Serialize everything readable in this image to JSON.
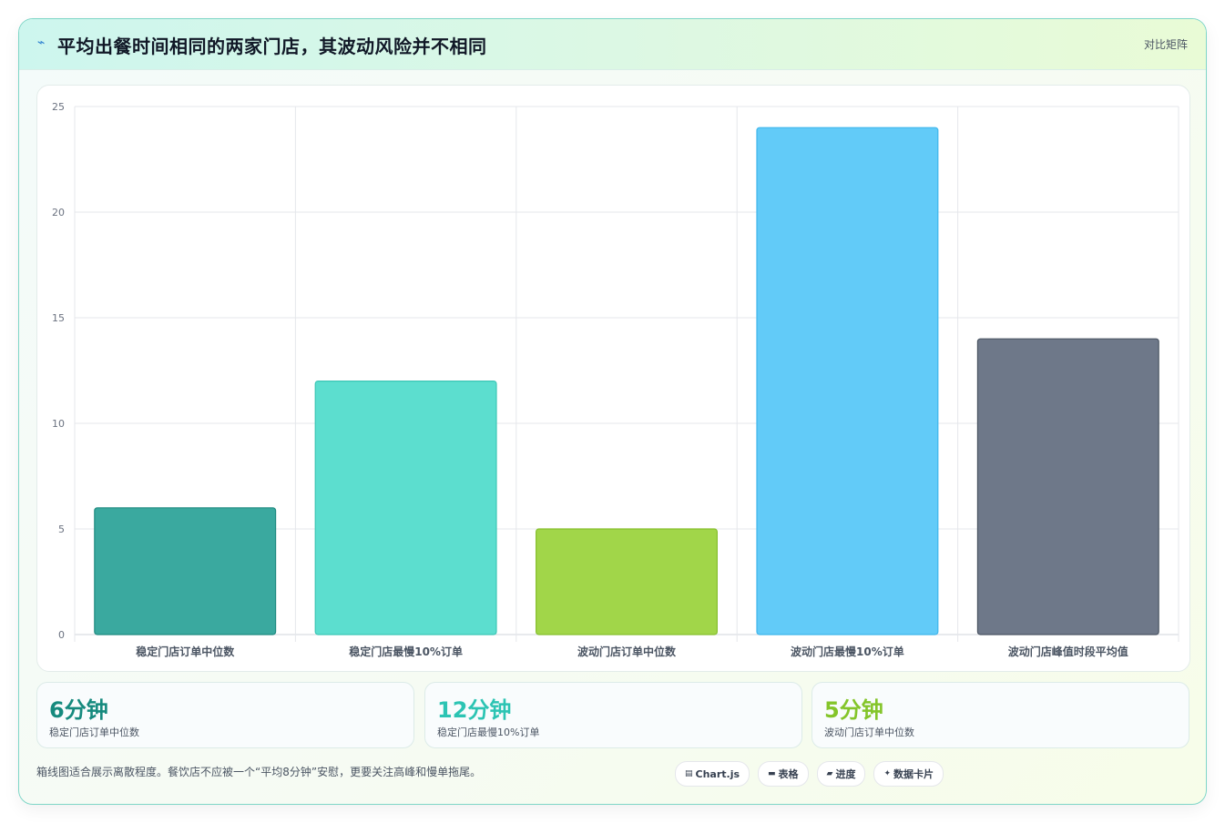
{
  "header": {
    "icon": "sparkline-icon",
    "title": "平均出餐时间相同的两家门店，其波动风险并不相同",
    "tag": "对比矩阵"
  },
  "chart_data": {
    "type": "bar",
    "title": "",
    "xlabel": "",
    "ylabel": "",
    "categories": [
      "稳定门店订单中位数",
      "稳定门店最慢10%订单",
      "波动门店订单中位数",
      "波动门店最慢10%订单",
      "波动门店峰值时段平均值"
    ],
    "values": [
      6,
      12,
      5,
      24,
      14
    ],
    "ylim": [
      0,
      25
    ],
    "yticks": [
      0,
      5,
      10,
      15,
      20,
      25
    ],
    "grid": true,
    "legend": "none",
    "colors": [
      "#3aa99f",
      "#5cdecf",
      "#a1d649",
      "#62cbf8",
      "#6e7889"
    ],
    "border_colors": [
      "#1f8a80",
      "#3cc7b6",
      "#86bf2e",
      "#3fb6ec",
      "#4b5563"
    ]
  },
  "kpis": [
    {
      "value": "6分钟",
      "label": "稳定门店订单中位数",
      "color": "#168a7e"
    },
    {
      "value": "12分钟",
      "label": "稳定门店最慢10%订单",
      "color": "#2cc4b3"
    },
    {
      "value": "5分钟",
      "label": "波动门店订单中位数",
      "color": "#84c52a"
    }
  ],
  "footer": {
    "note": "箱线图适合展示离散程度。餐饮店不应被一个“平均8分钟”安慰，更要关注高峰和慢单拖尾。",
    "chips": [
      {
        "icon": "chart-icon",
        "glyph": "▤",
        "label": "Chart.js"
      },
      {
        "icon": "table-icon",
        "glyph": "▬",
        "label": "表格"
      },
      {
        "icon": "progress-icon",
        "glyph": "▰",
        "label": "进度"
      },
      {
        "icon": "sparkle-icon",
        "glyph": "✦",
        "label": "数据卡片"
      }
    ]
  }
}
